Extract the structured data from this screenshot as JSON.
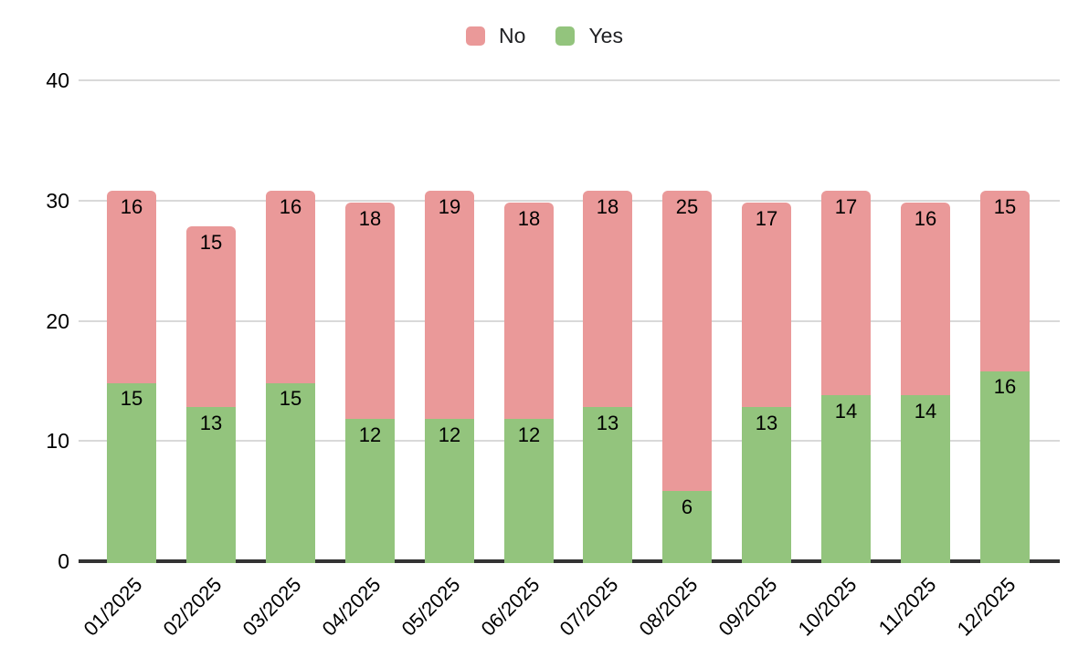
{
  "chart_data": {
    "type": "bar",
    "stacked": true,
    "title": "",
    "xlabel": "",
    "ylabel": "",
    "categories": [
      "01/2025",
      "02/2025",
      "03/2025",
      "04/2025",
      "05/2025",
      "06/2025",
      "07/2025",
      "08/2025",
      "09/2025",
      "10/2025",
      "11/2025",
      "12/2025"
    ],
    "series": [
      {
        "name": "No",
        "color": "#ea9999",
        "values": [
          16,
          15,
          16,
          18,
          19,
          18,
          18,
          25,
          17,
          17,
          16,
          15
        ]
      },
      {
        "name": "Yes",
        "color": "#93c47d",
        "values": [
          15,
          13,
          15,
          12,
          12,
          12,
          13,
          6,
          13,
          14,
          14,
          16
        ]
      }
    ],
    "stack_order_bottom_to_top": [
      "Yes",
      "No"
    ],
    "data_labels_visible": true,
    "ylim": [
      0,
      40
    ],
    "yticks": [
      0,
      10,
      20,
      30,
      40
    ],
    "grid": true,
    "legend_position": "top",
    "colors": {
      "gridline": "#d9d9d9",
      "axis": "#333333",
      "label_text": "#000000",
      "legend_text": "#202124",
      "background": "#ffffff"
    }
  }
}
